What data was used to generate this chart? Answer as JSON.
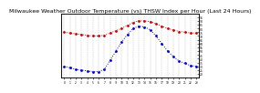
{
  "title": "Milwaukee Weather Outdoor Temperature (vs) THSW Index per Hour (Last 24 Hours)",
  "hours": [
    0,
    1,
    2,
    3,
    4,
    5,
    6,
    7,
    8,
    9,
    10,
    11,
    12,
    13,
    14,
    15,
    16,
    17,
    18,
    19,
    20,
    21,
    22,
    23
  ],
  "temp": [
    75,
    74,
    73,
    72,
    71,
    70,
    70,
    71,
    74,
    77,
    80,
    84,
    88,
    90,
    90,
    89,
    86,
    83,
    80,
    78,
    76,
    75,
    74,
    74
  ],
  "thsw": [
    30,
    28,
    26,
    25,
    24,
    23,
    23,
    26,
    38,
    50,
    62,
    72,
    80,
    83,
    82,
    78,
    70,
    60,
    50,
    43,
    37,
    34,
    31,
    30
  ],
  "temp_color": "#cc0000",
  "thsw_color": "#0000cc",
  "bg_color": "#ffffff",
  "grid_color": "#888888",
  "title_fontsize": 4.5,
  "ylim": [
    15,
    100
  ],
  "yticks_right": [
    20,
    25,
    30,
    35,
    40,
    45,
    50,
    55,
    60,
    65,
    70,
    75,
    80,
    85,
    90,
    95
  ],
  "marker_size": 2.0,
  "line_width": 0.7
}
